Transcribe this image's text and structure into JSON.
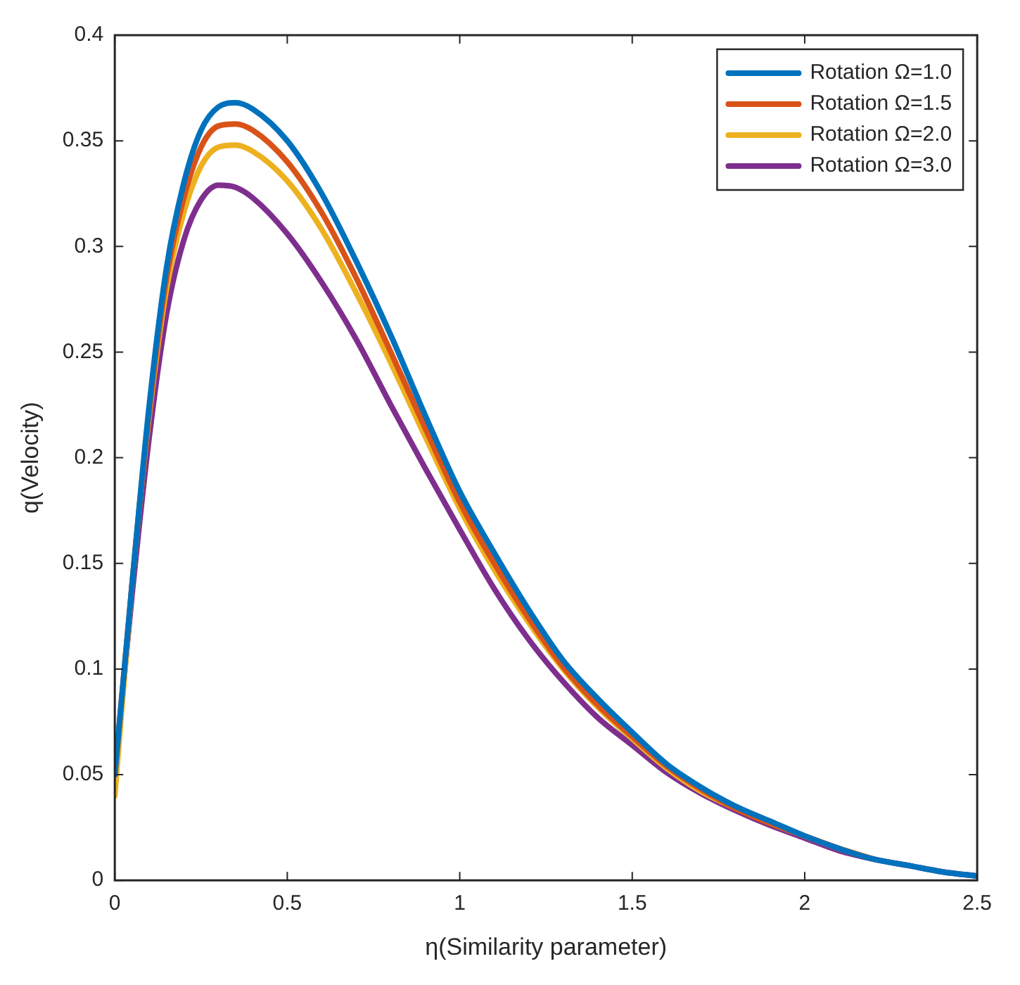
{
  "chart_data": {
    "type": "line",
    "xlabel": "η(Similarity parameter)",
    "ylabel": "q(Velocity)",
    "x": [
      0,
      0.05,
      0.1,
      0.15,
      0.2,
      0.25,
      0.3,
      0.35,
      0.4,
      0.5,
      0.6,
      0.7,
      0.8,
      0.9,
      1.0,
      1.1,
      1.2,
      1.3,
      1.4,
      1.5,
      1.6,
      1.7,
      1.8,
      1.9,
      2.0,
      2.1,
      2.2,
      2.3,
      2.4,
      2.5
    ],
    "series": [
      {
        "name": "Rotation Ω=1.0",
        "color": "#0072bd",
        "values": [
          0.05,
          0.14,
          0.225,
          0.29,
          0.33,
          0.355,
          0.366,
          0.368,
          0.365,
          0.35,
          0.325,
          0.293,
          0.258,
          0.22,
          0.184,
          0.155,
          0.128,
          0.104,
          0.086,
          0.07,
          0.055,
          0.044,
          0.035,
          0.028,
          0.021,
          0.015,
          0.01,
          0.007,
          0.004,
          0.002
        ]
      },
      {
        "name": "Rotation Ω=1.5",
        "color": "#d95319",
        "values": [
          0.05,
          0.14,
          0.222,
          0.285,
          0.323,
          0.347,
          0.357,
          0.358,
          0.355,
          0.34,
          0.316,
          0.285,
          0.25,
          0.214,
          0.179,
          0.15,
          0.124,
          0.101,
          0.083,
          0.068,
          0.054,
          0.043,
          0.034,
          0.027,
          0.021,
          0.015,
          0.01,
          null,
          null,
          null
        ]
      },
      {
        "name": "Rotation Ω=2.0",
        "color": "#edb120",
        "values": [
          0.04,
          0.14,
          0.22,
          0.28,
          0.316,
          0.338,
          0.347,
          0.348,
          0.345,
          0.331,
          0.308,
          0.278,
          0.245,
          0.21,
          0.176,
          0.147,
          0.122,
          0.1,
          0.082,
          0.067,
          0.053,
          0.042,
          0.034,
          0.027,
          0.021,
          0.015,
          0.01,
          null,
          null,
          null
        ]
      },
      {
        "name": "Rotation Ω=3.0",
        "color": "#7e2f8e",
        "values": [
          0.05,
          0.135,
          0.21,
          0.268,
          0.303,
          0.322,
          0.329,
          0.328,
          0.323,
          0.306,
          0.283,
          0.256,
          0.225,
          0.195,
          0.166,
          0.138,
          0.114,
          0.094,
          0.077,
          0.064,
          0.051,
          0.041,
          0.033,
          0.026,
          0.02,
          0.014,
          0.01,
          0.007,
          0.004,
          0.002
        ]
      }
    ],
    "xlim": [
      0,
      2.5
    ],
    "xticks": [
      0,
      0.5,
      1,
      1.5,
      2,
      2.5
    ],
    "ylim": [
      0,
      0.4
    ],
    "yticks": [
      0,
      0.05,
      0.1,
      0.15,
      0.2,
      0.25,
      0.3,
      0.35,
      0.4
    ],
    "grid": false,
    "legend": "top right",
    "marker": "none",
    "line_style": "solid"
  }
}
